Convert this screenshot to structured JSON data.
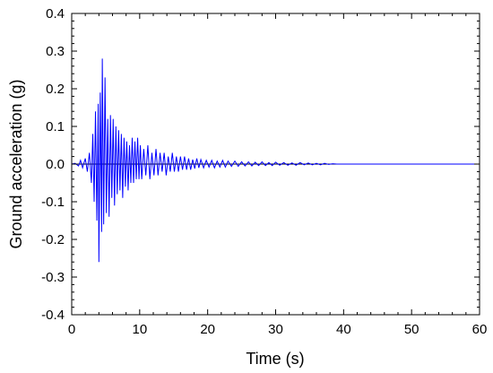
{
  "chart_data": {
    "type": "line",
    "title": "",
    "xlabel": "Time (s)",
    "ylabel": "Ground acceleration (g)",
    "xlim": [
      0,
      60
    ],
    "ylim": [
      -0.4,
      0.4
    ],
    "x_ticks": [
      0,
      10,
      20,
      30,
      40,
      50,
      60
    ],
    "x_tick_labels": [
      "0",
      "10",
      "20",
      "30",
      "40",
      "50",
      "60"
    ],
    "y_ticks": [
      0.4,
      0.3,
      0.2,
      0.1,
      0.0,
      -0.1,
      -0.2,
      -0.3,
      -0.4
    ],
    "y_tick_labels": [
      "0.4",
      "0.3",
      "0.2",
      "0.1",
      "0.0",
      "-0.1",
      "-0.2",
      "-0.3",
      "-0.4"
    ],
    "grid": false,
    "zero_line": true,
    "series": [
      {
        "color": "#0000ff",
        "x": [
          0.0,
          0.5,
          1.0,
          1.3,
          1.6,
          2.0,
          2.3,
          2.6,
          2.9,
          3.1,
          3.3,
          3.5,
          3.7,
          3.9,
          4.0,
          4.2,
          4.4,
          4.5,
          4.7,
          4.9,
          5.1,
          5.3,
          5.5,
          5.7,
          5.9,
          6.1,
          6.3,
          6.5,
          6.7,
          6.9,
          7.1,
          7.3,
          7.5,
          7.7,
          7.9,
          8.1,
          8.3,
          8.5,
          8.7,
          8.9,
          9.1,
          9.3,
          9.5,
          9.7,
          9.9,
          10.1,
          10.3,
          10.6,
          10.9,
          11.2,
          11.5,
          11.8,
          12.1,
          12.4,
          12.7,
          13.0,
          13.3,
          13.6,
          13.9,
          14.2,
          14.5,
          14.8,
          15.1,
          15.4,
          15.7,
          16.0,
          16.3,
          16.6,
          16.9,
          17.2,
          17.5,
          17.8,
          18.1,
          18.4,
          18.7,
          19.0,
          19.4,
          19.8,
          20.2,
          20.6,
          21.0,
          21.4,
          21.8,
          22.2,
          22.6,
          23.0,
          23.5,
          24.0,
          24.5,
          25.0,
          25.5,
          26.0,
          26.5,
          27.0,
          27.5,
          28.0,
          28.5,
          29.0,
          29.5,
          30.0,
          30.6,
          31.2,
          31.8,
          32.4,
          33.0,
          33.6,
          34.2,
          34.8,
          35.4,
          36.0,
          36.6,
          37.2,
          37.8,
          38.4,
          39.0,
          40.0,
          50.0,
          60.0
        ],
        "y": [
          0.0,
          0.002,
          -0.005,
          0.01,
          -0.01,
          0.015,
          -0.02,
          0.03,
          -0.05,
          0.08,
          -0.1,
          0.14,
          -0.15,
          0.16,
          -0.26,
          0.19,
          -0.18,
          0.28,
          -0.16,
          0.23,
          -0.13,
          0.12,
          -0.14,
          0.13,
          -0.09,
          0.12,
          -0.11,
          0.1,
          -0.08,
          0.09,
          -0.07,
          0.08,
          -0.09,
          0.07,
          -0.06,
          0.06,
          -0.07,
          0.05,
          -0.05,
          0.07,
          -0.05,
          0.06,
          -0.04,
          0.07,
          -0.04,
          0.05,
          -0.04,
          0.04,
          -0.03,
          0.05,
          -0.04,
          0.03,
          -0.03,
          0.04,
          -0.03,
          0.03,
          -0.02,
          0.03,
          -0.03,
          0.02,
          -0.02,
          0.03,
          -0.02,
          0.02,
          -0.02,
          0.02,
          -0.015,
          0.02,
          -0.015,
          0.015,
          -0.015,
          0.012,
          -0.012,
          0.015,
          -0.01,
          0.012,
          -0.01,
          0.01,
          -0.008,
          0.01,
          -0.01,
          0.008,
          -0.008,
          0.01,
          -0.008,
          0.008,
          -0.006,
          0.008,
          -0.006,
          0.006,
          -0.005,
          0.006,
          -0.005,
          0.005,
          -0.004,
          0.006,
          -0.004,
          0.004,
          -0.004,
          0.005,
          -0.003,
          0.004,
          -0.003,
          0.003,
          -0.003,
          0.004,
          -0.002,
          0.003,
          -0.002,
          0.002,
          -0.002,
          0.002,
          -0.001,
          0.001,
          0.0,
          0.0,
          0.0,
          0.0
        ]
      }
    ]
  }
}
